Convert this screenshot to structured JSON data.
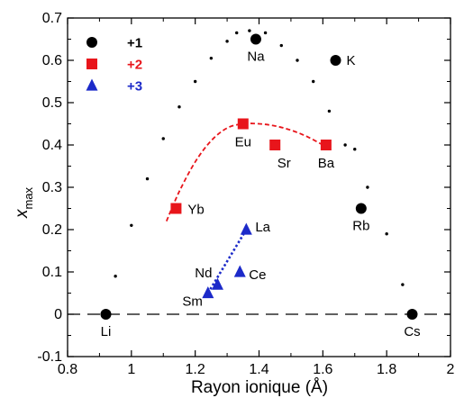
{
  "chart_data": {
    "type": "scatter",
    "xlabel": "Rayon ionique (Å)",
    "ylabel": "x",
    "ylabel_sub": "max",
    "xlim": [
      0.8,
      2.0
    ],
    "ylim": [
      -0.1,
      0.7
    ],
    "x_ticks": [
      "0.8",
      "1",
      "1.2",
      "1.4",
      "1.6",
      "1.8",
      "2"
    ],
    "y_ticks": [
      "-0.1",
      "0",
      "0.1",
      "0.2",
      "0.3",
      "0.4",
      "0.5",
      "0.6",
      "0.7"
    ],
    "grid": false,
    "legend_position": "top-left",
    "legend": [
      {
        "label": "+1",
        "marker": "circle",
        "color": "#000000"
      },
      {
        "label": "+2",
        "marker": "square",
        "color": "#e8151b"
      },
      {
        "label": "+3",
        "marker": "triangle",
        "color": "#1c2ac9"
      }
    ],
    "series": [
      {
        "name": "+1",
        "marker": "circle",
        "color": "#000000",
        "points": [
          {
            "label": "Li",
            "x": 0.92,
            "y": 0.0
          },
          {
            "label": "Na",
            "x": 1.39,
            "y": 0.65
          },
          {
            "label": "K",
            "x": 1.64,
            "y": 0.6
          },
          {
            "label": "Rb",
            "x": 1.72,
            "y": 0.25
          },
          {
            "label": "Cs",
            "x": 1.88,
            "y": 0.0
          }
        ]
      },
      {
        "name": "+2",
        "marker": "square",
        "color": "#e8151b",
        "points": [
          {
            "label": "Yb",
            "x": 1.14,
            "y": 0.25
          },
          {
            "label": "Eu",
            "x": 1.35,
            "y": 0.45
          },
          {
            "label": "Sr",
            "x": 1.45,
            "y": 0.4
          },
          {
            "label": "Ba",
            "x": 1.61,
            "y": 0.4
          }
        ]
      },
      {
        "name": "+3",
        "marker": "triangle",
        "color": "#1c2ac9",
        "points": [
          {
            "label": "Sm",
            "x": 1.24,
            "y": 0.05
          },
          {
            "label": "Nd",
            "x": 1.27,
            "y": 0.07
          },
          {
            "label": "Ce",
            "x": 1.34,
            "y": 0.1
          },
          {
            "label": "La",
            "x": 1.36,
            "y": 0.2
          }
        ]
      }
    ],
    "dotted_envelope": [
      [
        0.95,
        0.09
      ],
      [
        1.0,
        0.21
      ],
      [
        1.05,
        0.32
      ],
      [
        1.1,
        0.415
      ],
      [
        1.15,
        0.49
      ],
      [
        1.2,
        0.55
      ],
      [
        1.25,
        0.605
      ],
      [
        1.3,
        0.645
      ],
      [
        1.33,
        0.665
      ],
      [
        1.37,
        0.67
      ],
      [
        1.42,
        0.665
      ],
      [
        1.47,
        0.635
      ],
      [
        1.52,
        0.6
      ],
      [
        1.57,
        0.55
      ],
      [
        1.62,
        0.48
      ],
      [
        1.67,
        0.4
      ],
      [
        1.7,
        0.39
      ],
      [
        1.74,
        0.3
      ],
      [
        1.8,
        0.19
      ],
      [
        1.85,
        0.07
      ]
    ],
    "fit_curve_plus2": [
      [
        1.11,
        0.22
      ],
      [
        1.15,
        0.29
      ],
      [
        1.2,
        0.36
      ],
      [
        1.25,
        0.41
      ],
      [
        1.3,
        0.44
      ],
      [
        1.35,
        0.45
      ],
      [
        1.4,
        0.45
      ],
      [
        1.45,
        0.445
      ],
      [
        1.5,
        0.435
      ],
      [
        1.55,
        0.42
      ],
      [
        1.6,
        0.4
      ]
    ],
    "fit_line_plus3": [
      [
        1.24,
        0.05
      ],
      [
        1.36,
        0.2
      ]
    ],
    "reference_line_y": 0.0
  }
}
